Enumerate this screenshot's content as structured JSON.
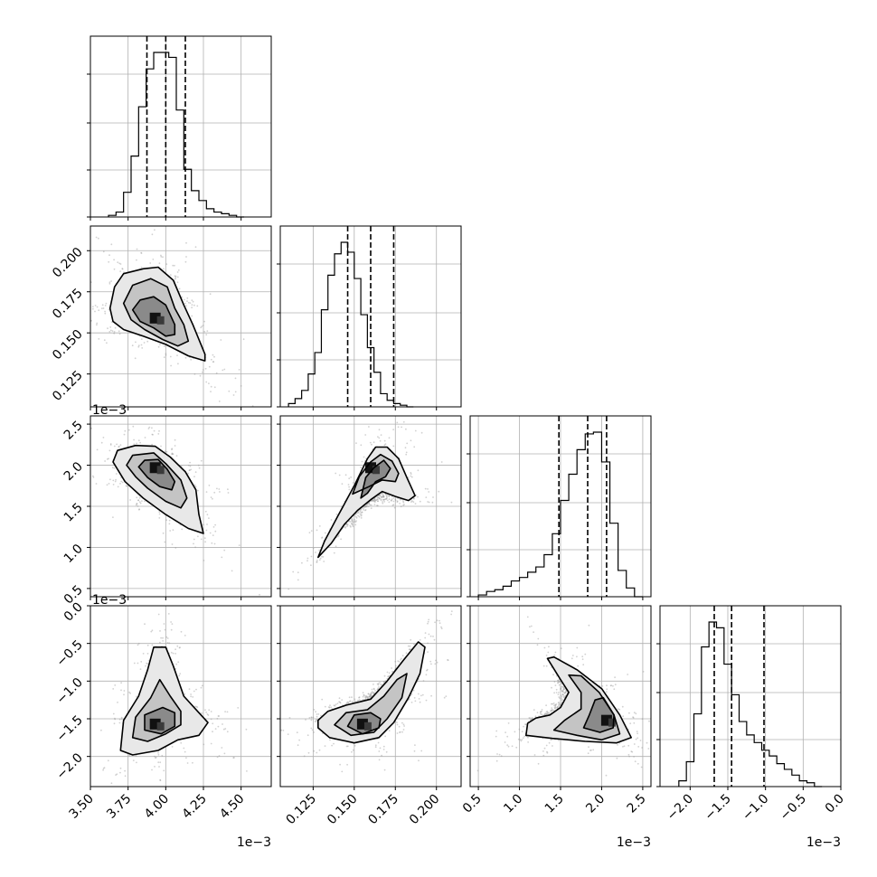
{
  "chart_data": {
    "type": "corner",
    "parameters": [
      {
        "id": "p0",
        "range": [
          3.5,
          4.7
        ],
        "ticks": [
          "3.50",
          "3.75",
          "4.00",
          "4.25",
          "4.50"
        ],
        "tick_values": [
          3.5,
          3.75,
          4.0,
          4.25,
          4.5
        ],
        "offset_label": "1e−3",
        "quantiles": [
          3.875,
          4.0,
          4.13
        ],
        "hist": {
          "edges_start": 3.62,
          "bin_width": 0.05,
          "counts": [
            1,
            3,
            15,
            37,
            67,
            90,
            100,
            100,
            97,
            65,
            29,
            16,
            10,
            5,
            3,
            2,
            1,
            0
          ]
        }
      },
      {
        "id": "p1",
        "range": [
          0.105,
          0.215
        ],
        "ticks": [
          "0.125",
          "0.150",
          "0.175",
          "0.200"
        ],
        "tick_values": [
          0.125,
          0.15,
          0.175,
          0.2
        ],
        "offset_label": "",
        "quantiles": [
          0.146,
          0.16,
          0.174
        ],
        "hist": {
          "edges_start": 0.11,
          "bin_width": 0.004,
          "counts": [
            2,
            5,
            10,
            20,
            33,
            59,
            80,
            93,
            100,
            94,
            78,
            56,
            36,
            21,
            8,
            4,
            2,
            1,
            0
          ]
        }
      },
      {
        "id": "p2",
        "range": [
          0.4,
          2.6
        ],
        "ticks": [
          "0.5",
          "1.0",
          "1.5",
          "2.0",
          "2.5"
        ],
        "tick_values": [
          0.5,
          1.0,
          1.5,
          2.0,
          2.5
        ],
        "offset_label": "1e−3",
        "quantiles": [
          1.48,
          1.83,
          2.06
        ],
        "hist": {
          "edges_start": 0.5,
          "bin_width": 0.1,
          "counts": [
            1,
            3,
            4,
            6,
            9,
            11,
            14,
            17,
            24,
            36,
            55,
            70,
            84,
            93,
            94,
            77,
            42,
            15,
            5,
            0
          ]
        }
      },
      {
        "id": "p3",
        "range": [
          -2.4,
          0.0
        ],
        "ticks": [
          "−2.0",
          "−1.5",
          "−1.0",
          "−0.5",
          "0.0"
        ],
        "tick_values": [
          -2.0,
          -1.5,
          -1.0,
          -0.5,
          0.0
        ],
        "offset_label": "1e−3",
        "quantiles": [
          -1.68,
          -1.45,
          -1.02
        ],
        "hist": {
          "edges_start": -2.15,
          "bin_width": 0.1,
          "counts": [
            3,
            13,
            38,
            73,
            86,
            83,
            64,
            48,
            34,
            27,
            23,
            19,
            16,
            12,
            9,
            6,
            3,
            2,
            0
          ]
        }
      }
    ],
    "pairs": [
      {
        "x": "p0",
        "y": "p1",
        "corr": -0.6,
        "mode": [
          3.93,
          0.159
        ],
        "contours": [
          [
            [
              3.63,
              0.165
            ],
            [
              3.66,
              0.178
            ],
            [
              3.72,
              0.186
            ],
            [
              3.85,
              0.189
            ],
            [
              3.95,
              0.19
            ],
            [
              4.05,
              0.182
            ],
            [
              4.12,
              0.167
            ],
            [
              4.18,
              0.155
            ],
            [
              4.26,
              0.137
            ],
            [
              4.26,
              0.133
            ],
            [
              4.15,
              0.136
            ],
            [
              4.0,
              0.143
            ],
            [
              3.85,
              0.148
            ],
            [
              3.72,
              0.152
            ],
            [
              3.65,
              0.157
            ]
          ],
          [
            [
              3.72,
              0.168
            ],
            [
              3.78,
              0.179
            ],
            [
              3.9,
              0.183
            ],
            [
              4.01,
              0.178
            ],
            [
              4.06,
              0.165
            ],
            [
              4.12,
              0.155
            ],
            [
              4.15,
              0.145
            ],
            [
              4.08,
              0.142
            ],
            [
              3.98,
              0.146
            ],
            [
              3.86,
              0.152
            ],
            [
              3.77,
              0.158
            ]
          ],
          [
            [
              3.78,
              0.164
            ],
            [
              3.83,
              0.17
            ],
            [
              3.92,
              0.172
            ],
            [
              4.0,
              0.167
            ],
            [
              4.06,
              0.155
            ],
            [
              4.06,
              0.149
            ],
            [
              4.0,
              0.148
            ],
            [
              3.92,
              0.153
            ],
            [
              3.83,
              0.157
            ]
          ]
        ]
      },
      {
        "x": "p0",
        "y": "p2",
        "corr": -0.7,
        "mode": [
          3.93,
          1.97
        ],
        "contours": [
          [
            [
              3.65,
              2.04
            ],
            [
              3.68,
              2.18
            ],
            [
              3.8,
              2.24
            ],
            [
              3.93,
              2.23
            ],
            [
              4.03,
              2.1
            ],
            [
              4.13,
              1.92
            ],
            [
              4.2,
              1.7
            ],
            [
              4.22,
              1.4
            ],
            [
              4.25,
              1.17
            ],
            [
              4.15,
              1.23
            ],
            [
              4.0,
              1.4
            ],
            [
              3.85,
              1.6
            ],
            [
              3.73,
              1.8
            ]
          ],
          [
            [
              3.74,
              2.0
            ],
            [
              3.78,
              2.12
            ],
            [
              3.92,
              2.15
            ],
            [
              4.0,
              2.02
            ],
            [
              4.1,
              1.82
            ],
            [
              4.14,
              1.6
            ],
            [
              4.1,
              1.48
            ],
            [
              4.0,
              1.56
            ],
            [
              3.88,
              1.72
            ],
            [
              3.8,
              1.86
            ]
          ],
          [
            [
              3.82,
              1.98
            ],
            [
              3.86,
              2.06
            ],
            [
              3.95,
              2.07
            ],
            [
              4.01,
              1.95
            ],
            [
              4.06,
              1.8
            ],
            [
              4.04,
              1.7
            ],
            [
              3.96,
              1.74
            ],
            [
              3.88,
              1.85
            ]
          ]
        ]
      },
      {
        "x": "p1",
        "y": "p2",
        "corr": 0.55,
        "mode": [
          0.16,
          1.97
        ],
        "contours": [
          [
            [
              0.128,
              0.88
            ],
            [
              0.132,
              1.08
            ],
            [
              0.14,
              1.38
            ],
            [
              0.15,
              1.75
            ],
            [
              0.158,
              2.08
            ],
            [
              0.163,
              2.22
            ],
            [
              0.17,
              2.22
            ],
            [
              0.177,
              2.08
            ],
            [
              0.182,
              1.85
            ],
            [
              0.187,
              1.63
            ],
            [
              0.183,
              1.57
            ],
            [
              0.175,
              1.62
            ],
            [
              0.167,
              1.68
            ],
            [
              0.16,
              1.58
            ],
            [
              0.152,
              1.45
            ],
            [
              0.144,
              1.28
            ],
            [
              0.136,
              1.05
            ]
          ],
          [
            [
              0.149,
              1.65
            ],
            [
              0.153,
              1.86
            ],
            [
              0.16,
              2.04
            ],
            [
              0.166,
              2.13
            ],
            [
              0.173,
              2.05
            ],
            [
              0.177,
              1.9
            ],
            [
              0.175,
              1.8
            ],
            [
              0.167,
              1.82
            ],
            [
              0.159,
              1.74
            ]
          ],
          [
            [
              0.154,
              1.6
            ],
            [
              0.157,
              1.85
            ],
            [
              0.162,
              1.97
            ],
            [
              0.168,
              2.06
            ],
            [
              0.172,
              1.96
            ],
            [
              0.169,
              1.86
            ],
            [
              0.163,
              1.8
            ],
            [
              0.158,
              1.66
            ]
          ]
        ]
      },
      {
        "x": "p0",
        "y": "p3",
        "corr": 0.1,
        "mode": [
          3.93,
          -1.57
        ],
        "contours": [
          [
            [
              3.7,
              -1.92
            ],
            [
              3.72,
              -1.52
            ],
            [
              3.82,
              -1.2
            ],
            [
              3.88,
              -0.85
            ],
            [
              3.92,
              -0.55
            ],
            [
              4.0,
              -0.55
            ],
            [
              4.05,
              -0.8
            ],
            [
              4.12,
              -1.2
            ],
            [
              4.22,
              -1.42
            ],
            [
              4.28,
              -1.55
            ],
            [
              4.22,
              -1.72
            ],
            [
              4.08,
              -1.78
            ],
            [
              3.95,
              -1.92
            ],
            [
              3.78,
              -1.98
            ]
          ],
          [
            [
              3.78,
              -1.75
            ],
            [
              3.8,
              -1.48
            ],
            [
              3.9,
              -1.22
            ],
            [
              3.96,
              -0.98
            ],
            [
              4.03,
              -1.2
            ],
            [
              4.1,
              -1.4
            ],
            [
              4.1,
              -1.58
            ],
            [
              4.0,
              -1.7
            ],
            [
              3.88,
              -1.8
            ]
          ],
          [
            [
              3.86,
              -1.65
            ],
            [
              3.86,
              -1.45
            ],
            [
              3.98,
              -1.35
            ],
            [
              4.06,
              -1.42
            ],
            [
              4.06,
              -1.6
            ],
            [
              3.97,
              -1.7
            ]
          ]
        ]
      },
      {
        "x": "p1",
        "y": "p3",
        "corr": 0.5,
        "mode": [
          0.155,
          -1.57
        ],
        "contours": [
          [
            [
              0.128,
              -1.52
            ],
            [
              0.134,
              -1.4
            ],
            [
              0.145,
              -1.32
            ],
            [
              0.16,
              -1.24
            ],
            [
              0.17,
              -1.0
            ],
            [
              0.18,
              -0.72
            ],
            [
              0.189,
              -0.48
            ],
            [
              0.193,
              -0.55
            ],
            [
              0.19,
              -0.9
            ],
            [
              0.183,
              -1.22
            ],
            [
              0.174,
              -1.55
            ],
            [
              0.165,
              -1.75
            ],
            [
              0.15,
              -1.82
            ],
            [
              0.135,
              -1.75
            ],
            [
              0.128,
              -1.62
            ]
          ],
          [
            [
              0.138,
              -1.58
            ],
            [
              0.145,
              -1.42
            ],
            [
              0.158,
              -1.38
            ],
            [
              0.168,
              -1.2
            ],
            [
              0.176,
              -0.98
            ],
            [
              0.182,
              -0.9
            ],
            [
              0.179,
              -1.22
            ],
            [
              0.17,
              -1.5
            ],
            [
              0.162,
              -1.68
            ],
            [
              0.148,
              -1.72
            ]
          ],
          [
            [
              0.146,
              -1.6
            ],
            [
              0.15,
              -1.45
            ],
            [
              0.16,
              -1.42
            ],
            [
              0.166,
              -1.5
            ],
            [
              0.165,
              -1.62
            ],
            [
              0.155,
              -1.7
            ]
          ]
        ]
      },
      {
        "x": "p2",
        "y": "p3",
        "corr": -0.55,
        "mode": [
          2.06,
          -1.52
        ],
        "contours": [
          [
            [
              1.08,
              -1.72
            ],
            [
              1.1,
              -1.56
            ],
            [
              1.2,
              -1.49
            ],
            [
              1.37,
              -1.45
            ],
            [
              1.5,
              -1.35
            ],
            [
              1.6,
              -1.15
            ],
            [
              1.5,
              -0.98
            ],
            [
              1.34,
              -0.7
            ],
            [
              1.42,
              -0.68
            ],
            [
              1.7,
              -0.85
            ],
            [
              2.0,
              -1.1
            ],
            [
              2.22,
              -1.45
            ],
            [
              2.36,
              -1.75
            ],
            [
              2.18,
              -1.82
            ],
            [
              1.8,
              -1.8
            ],
            [
              1.4,
              -1.76
            ]
          ],
          [
            [
              1.42,
              -1.65
            ],
            [
              1.55,
              -1.52
            ],
            [
              1.75,
              -1.37
            ],
            [
              1.75,
              -1.15
            ],
            [
              1.6,
              -0.92
            ],
            [
              1.75,
              -0.93
            ],
            [
              1.97,
              -1.15
            ],
            [
              2.15,
              -1.45
            ],
            [
              2.22,
              -1.7
            ],
            [
              2.0,
              -1.78
            ],
            [
              1.7,
              -1.72
            ]
          ],
          [
            [
              1.78,
              -1.62
            ],
            [
              1.85,
              -1.45
            ],
            [
              1.92,
              -1.25
            ],
            [
              2.02,
              -1.22
            ],
            [
              2.15,
              -1.45
            ],
            [
              2.14,
              -1.62
            ],
            [
              1.98,
              -1.68
            ]
          ]
        ]
      }
    ]
  }
}
